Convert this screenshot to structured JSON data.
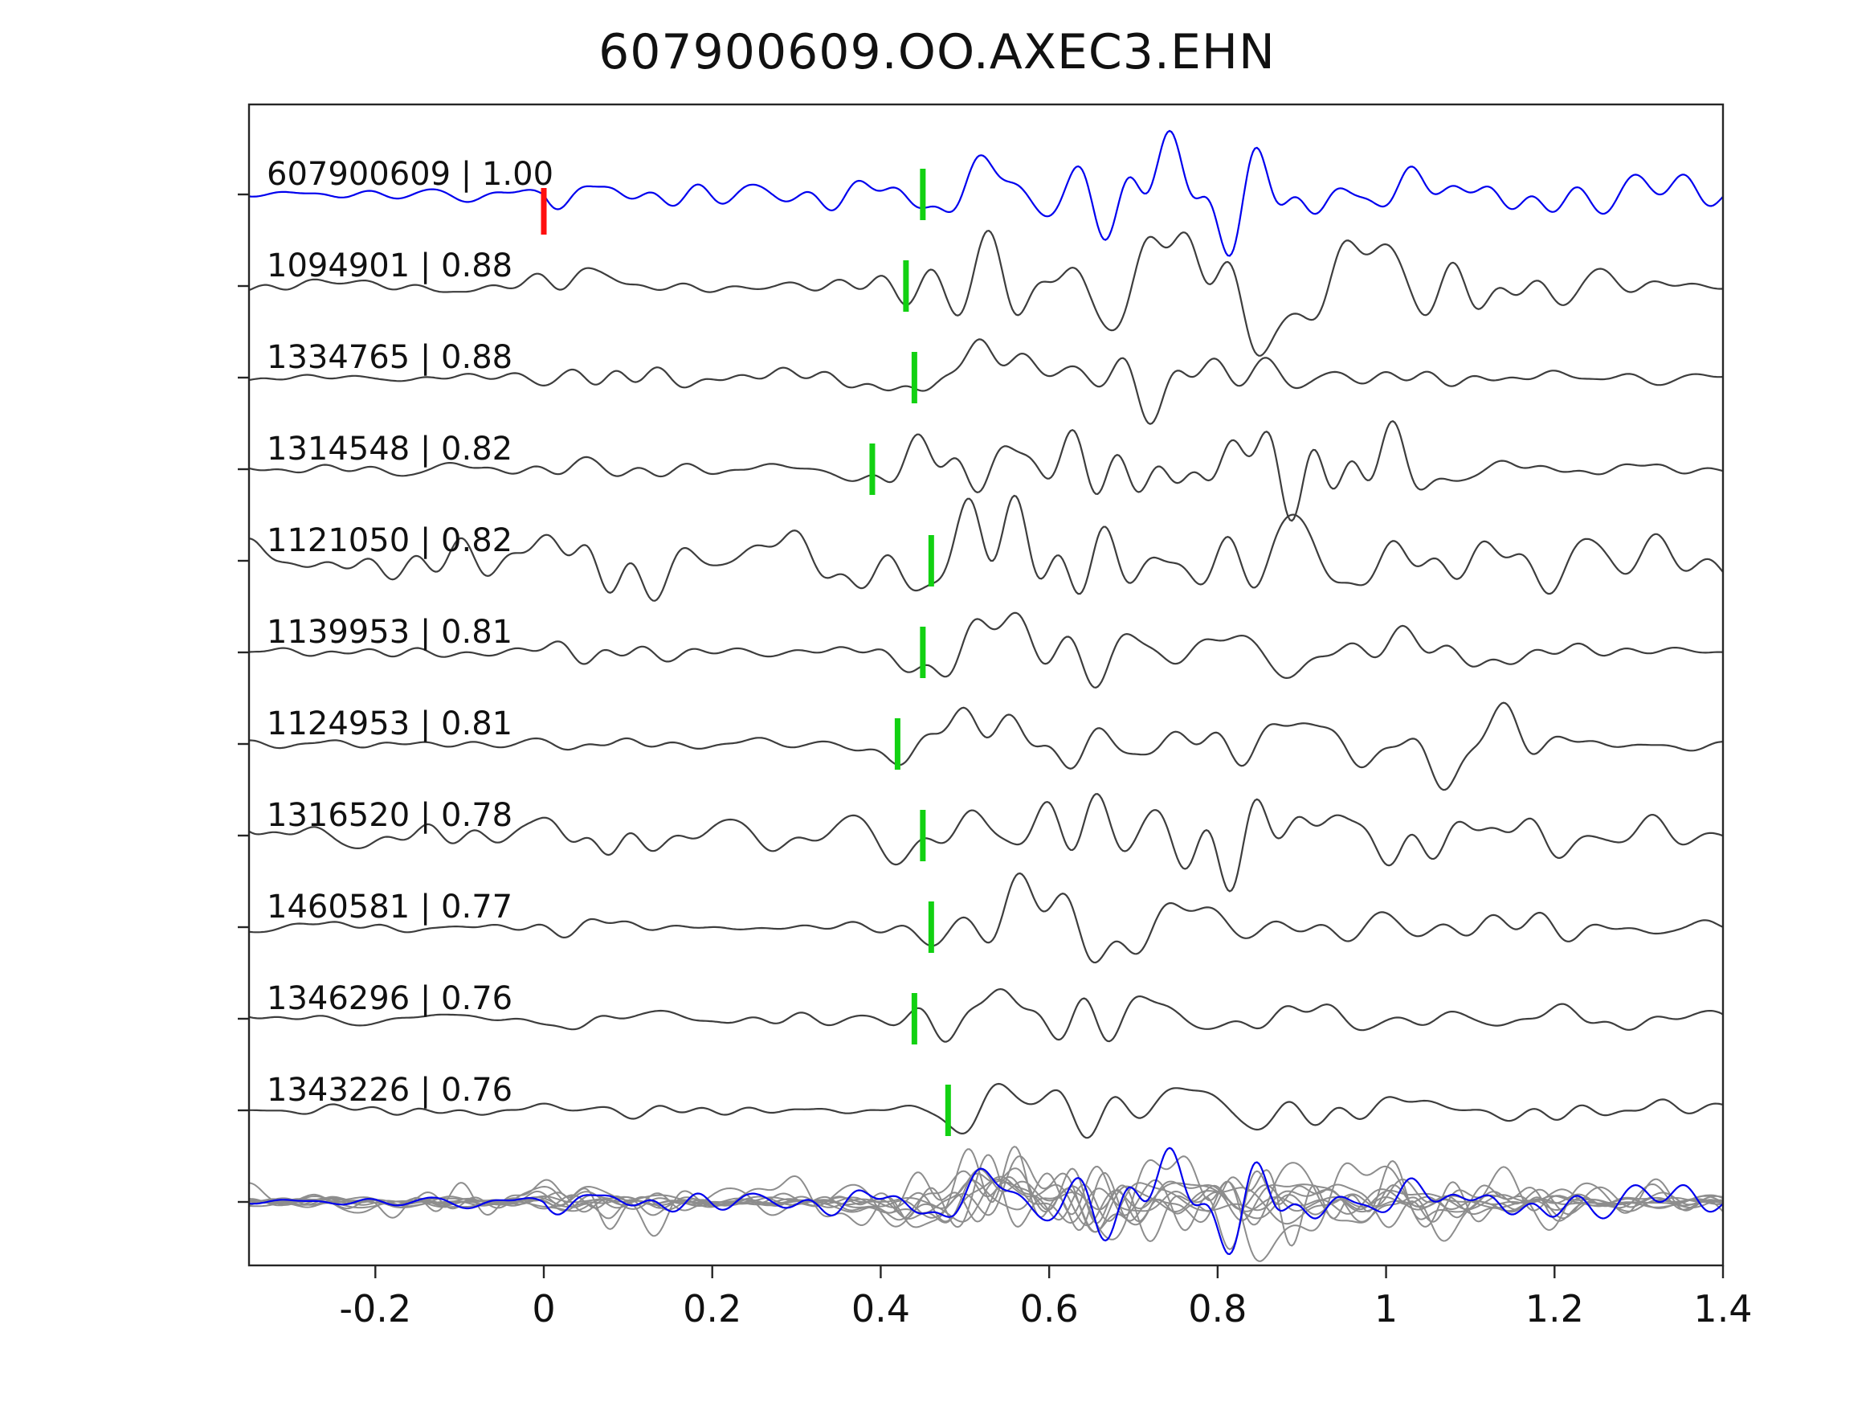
{
  "title": "607900609.OO.AXEC3.EHN",
  "chart_data": {
    "type": "line",
    "title": "607900609.OO.AXEC3.EHN",
    "xlabel": "",
    "ylabel": "",
    "xlim": [
      -0.35,
      1.4
    ],
    "x_ticks": [
      -0.2,
      0,
      0.2,
      0.4,
      0.6,
      0.8,
      1,
      1.2,
      1.4
    ],
    "x_tick_labels": [
      "-0.2",
      "0",
      "0.2",
      "0.4",
      "0.6",
      "0.8",
      "1",
      "1.2",
      "1.4"
    ],
    "grid": false,
    "legend": "none",
    "description": "Template-matching waveform comparison: reference trace (blue) on top, 10 matched detections (dark gray) below with id | correlation labels, green pick markers on each trace, red origin marker at t=0 on reference, and all traces overlaid (gray + blue reference) in the bottom row.",
    "colors": {
      "reference": "#0000ee",
      "match": "#3d3d3d",
      "overlay": "#8d8d8d",
      "pick": "#12d112",
      "origin": "#ff0f0f",
      "spine": "#262626",
      "text": "#111111"
    },
    "traces": [
      {
        "id": "607900609",
        "corr": "1.00",
        "label": "607900609 | 1.00",
        "pick": 0.45,
        "origin_pick": 0,
        "reference": true,
        "quiet_before_zero": true,
        "seed": 11,
        "pre": 0.28,
        "early": 0.1,
        "main": 0.85,
        "tail": 0.3,
        "coda": 0.3,
        "codaT": 0.95,
        "codaW": 0.35
      },
      {
        "id": "1094901",
        "corr": "0.88",
        "label": "1094901 | 0.88",
        "pick": 0.43,
        "seed": 22,
        "pre": 0.16,
        "early": 0.55,
        "main": 1.0,
        "tail": 0.22,
        "coda": 0.75,
        "codaT": 0.9,
        "codaW": 0.22
      },
      {
        "id": "1334765",
        "corr": "0.88",
        "label": "1334765 | 0.88",
        "pick": 0.44,
        "seed": 33,
        "pre": 0.1,
        "early": 0.3,
        "main": 1.0,
        "tail": 0.16,
        "coda": 0.4,
        "codaT": 0.72,
        "codaW": 0.18
      },
      {
        "id": "1314548",
        "corr": "0.82",
        "label": "1314548 | 0.82",
        "pick": 0.39,
        "seed": 44,
        "pre": 0.13,
        "early": 0.28,
        "main": 1.05,
        "tail": 0.16,
        "coda": 0.85,
        "codaT": 0.88,
        "codaW": 0.14
      },
      {
        "id": "1121050",
        "corr": "0.82",
        "label": "1121050 | 0.82",
        "pick": 0.46,
        "seed": 55,
        "pre": 0.42,
        "early": 0.45,
        "main": 0.95,
        "tail": 0.22,
        "coda": 0.4,
        "codaT": 0.85,
        "codaW": 0.3
      },
      {
        "id": "1139953",
        "corr": "0.81",
        "label": "1139953 | 0.81",
        "pick": 0.45,
        "seed": 66,
        "pre": 0.1,
        "early": 0.15,
        "main": 0.9,
        "tail": 0.2,
        "coda": 0.35,
        "codaT": 0.8,
        "codaW": 0.25
      },
      {
        "id": "1124953",
        "corr": "0.81",
        "label": "1124953 | 0.81",
        "pick": 0.42,
        "seed": 77,
        "pre": 0.1,
        "early": 0.15,
        "main": 0.9,
        "tail": 0.16,
        "coda": 0.85,
        "codaT": 0.95,
        "codaW": 0.16
      },
      {
        "id": "1316520",
        "corr": "0.78",
        "label": "1316520 | 0.78",
        "pick": 0.45,
        "seed": 88,
        "pre": 0.24,
        "early": 0.4,
        "main": 1.0,
        "tail": 0.22,
        "coda": 0.45,
        "codaT": 0.85,
        "codaW": 0.3
      },
      {
        "id": "1460581",
        "corr": "0.77",
        "label": "1460581 | 0.77",
        "pick": 0.46,
        "seed": 99,
        "pre": 0.1,
        "early": 0.1,
        "main": 1.25,
        "tail": 0.12,
        "coda": 0.2,
        "codaT": 0.95,
        "codaW": 0.3
      },
      {
        "id": "1346296",
        "corr": "0.76",
        "label": "1346296 | 0.76",
        "pick": 0.44,
        "seed": 110,
        "pre": 0.1,
        "early": 0.25,
        "main": 1.1,
        "tail": 0.13,
        "coda": 0.3,
        "codaT": 0.85,
        "codaW": 0.3
      },
      {
        "id": "1343226",
        "corr": "0.76",
        "label": "1343226 | 0.76",
        "pick": 0.48,
        "seed": 121,
        "pre": 0.1,
        "early": 0.1,
        "main": 1.15,
        "tail": 0.15,
        "coda": 0.28,
        "codaT": 0.8,
        "codaW": 0.3
      }
    ],
    "overlay": {
      "contains": "all traces overlaid at common baseline",
      "scale": 0.85
    }
  }
}
